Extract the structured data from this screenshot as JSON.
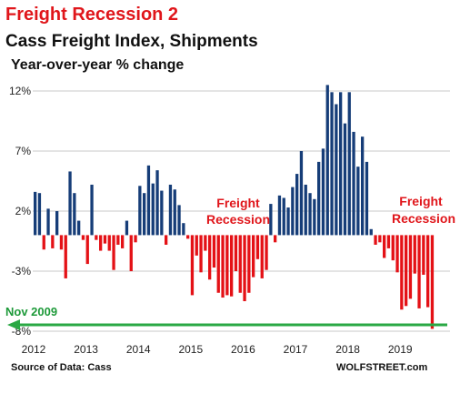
{
  "chart_data": {
    "type": "bar",
    "title": "Freight Recession 2",
    "subtitle": "Cass Freight Index, Shipments",
    "ylabel": "Year-over-year % change",
    "ylim": [
      -8.5,
      13
    ],
    "y_ticks": [
      12,
      7,
      2,
      -3,
      -8
    ],
    "y_tick_labels": [
      "12%",
      "7%",
      "2%",
      "-3%",
      "-8%"
    ],
    "x_tick_labels": [
      "2012",
      "2013",
      "2014",
      "2015",
      "2016",
      "2017",
      "2018",
      "2019"
    ],
    "x_start_year": 2012,
    "bars_per_year": 12,
    "values": [
      3.6,
      3.5,
      -1.2,
      2.2,
      -1.1,
      2.0,
      -1.2,
      -3.6,
      5.3,
      3.5,
      1.2,
      -0.4,
      -2.4,
      4.2,
      -0.4,
      -1.3,
      -0.7,
      -1.3,
      -2.9,
      -0.8,
      -1.1,
      1.2,
      -3.0,
      -0.6,
      4.1,
      3.5,
      5.8,
      4.3,
      5.4,
      3.7,
      -0.8,
      4.2,
      3.8,
      2.5,
      1.0,
      -0.3,
      -5.0,
      -1.7,
      -3.1,
      -1.3,
      -3.7,
      -2.7,
      -4.8,
      -5.2,
      -5.0,
      -5.1,
      -3.0,
      -4.8,
      -5.5,
      -4.8,
      -3.5,
      -2.0,
      -3.6,
      -2.9,
      2.6,
      -0.6,
      3.3,
      3.1,
      2.3,
      4.0,
      5.1,
      7.0,
      4.2,
      3.5,
      3.0,
      6.1,
      7.2,
      12.5,
      11.9,
      10.9,
      11.9,
      9.3,
      11.9,
      8.6,
      5.7,
      8.2,
      6.1,
      0.5,
      -0.8,
      -0.6,
      -1.9,
      -1.1,
      -2.1,
      -3.1,
      -6.2,
      -5.9,
      -5.3,
      -3.2,
      -6.1,
      -3.3,
      -6.0,
      -7.8
    ],
    "colors": {
      "positive": "#163d78",
      "negative": "#e41116"
    },
    "grid": true,
    "annotations": {
      "freight_recession_label": "Freight\nRecession",
      "nov_2009_label": "Nov 2009",
      "nov_2009_value": -8.0,
      "nov_2009_color": "#2aa844",
      "source": "Source of Data: Cass",
      "watermark": "WOLFSTREET.com"
    }
  }
}
